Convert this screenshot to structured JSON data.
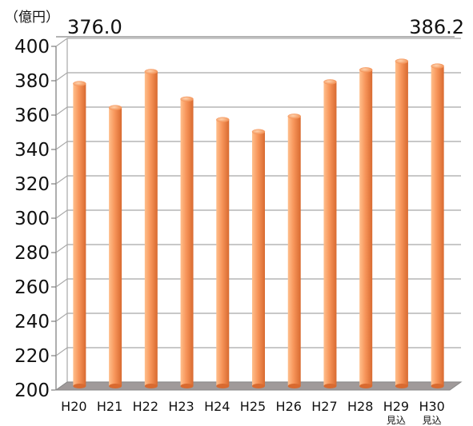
{
  "chart_data": {
    "type": "bar",
    "unit_label": "（億円）",
    "categories": [
      "H20",
      "H21",
      "H22",
      "H23",
      "H24",
      "H25",
      "H26",
      "H27",
      "H28",
      "H29",
      "H30"
    ],
    "category_sublabels": [
      "",
      "",
      "",
      "",
      "",
      "",
      "",
      "",
      "",
      "見込",
      "見込"
    ],
    "values": [
      376.0,
      362,
      383,
      367,
      355,
      348,
      357,
      377,
      384,
      389,
      386.2
    ],
    "annotations": [
      {
        "category": "H20",
        "text": "376.0"
      },
      {
        "category": "H30",
        "text": "386.2"
      }
    ],
    "ylim": [
      200,
      400
    ],
    "yticks": [
      200,
      220,
      240,
      260,
      280,
      300,
      320,
      340,
      360,
      380,
      400
    ],
    "grid": true,
    "colors": {
      "bar_light": "#ffbf8c",
      "bar_mid": "#f7955a",
      "bar_dark": "#d86a30",
      "floor": "#a09a9a",
      "grid": "#a8a8a8",
      "annotation_line": "#9a9a9a"
    }
  }
}
